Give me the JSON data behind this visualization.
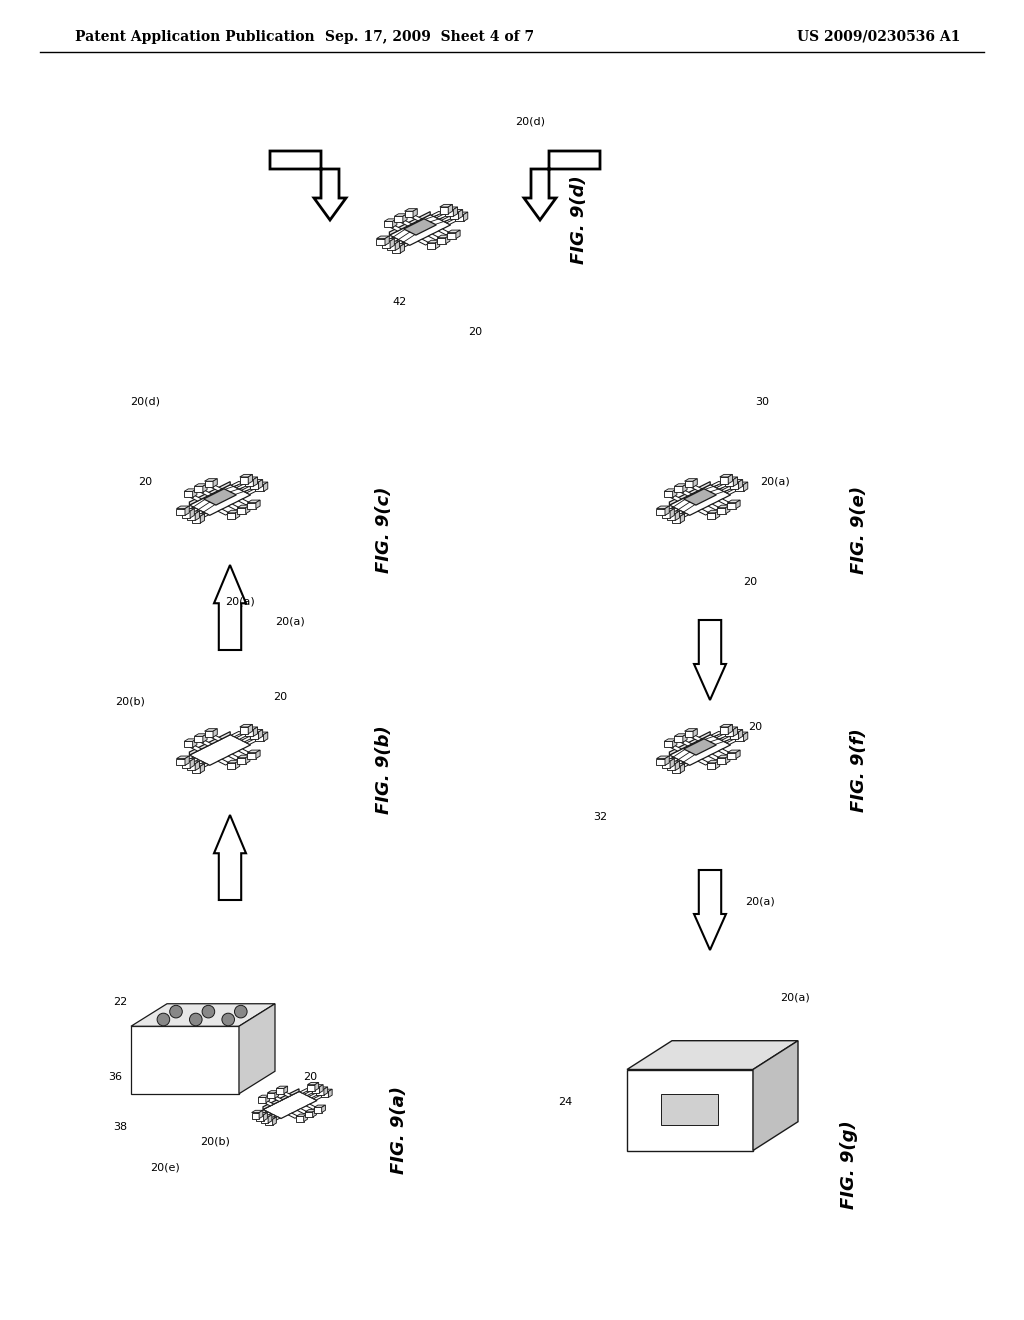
{
  "header_left": "Patent Application Publication",
  "header_center": "Sep. 17, 2009  Sheet 4 of 7",
  "header_right": "US 2009/0230536 A1",
  "background_color": "#ffffff",
  "text_color": "#000000",
  "line_color": "#1a1a1a",
  "fig_labels": {
    "9a": "FIG. 9(a)",
    "9b": "FIG. 9(b)",
    "9c": "FIG. 9(c)",
    "9d": "FIG. 9(d)",
    "9e": "FIG. 9(e)",
    "9f": "FIG. 9(f)",
    "9g": "FIG. 9(g)"
  }
}
